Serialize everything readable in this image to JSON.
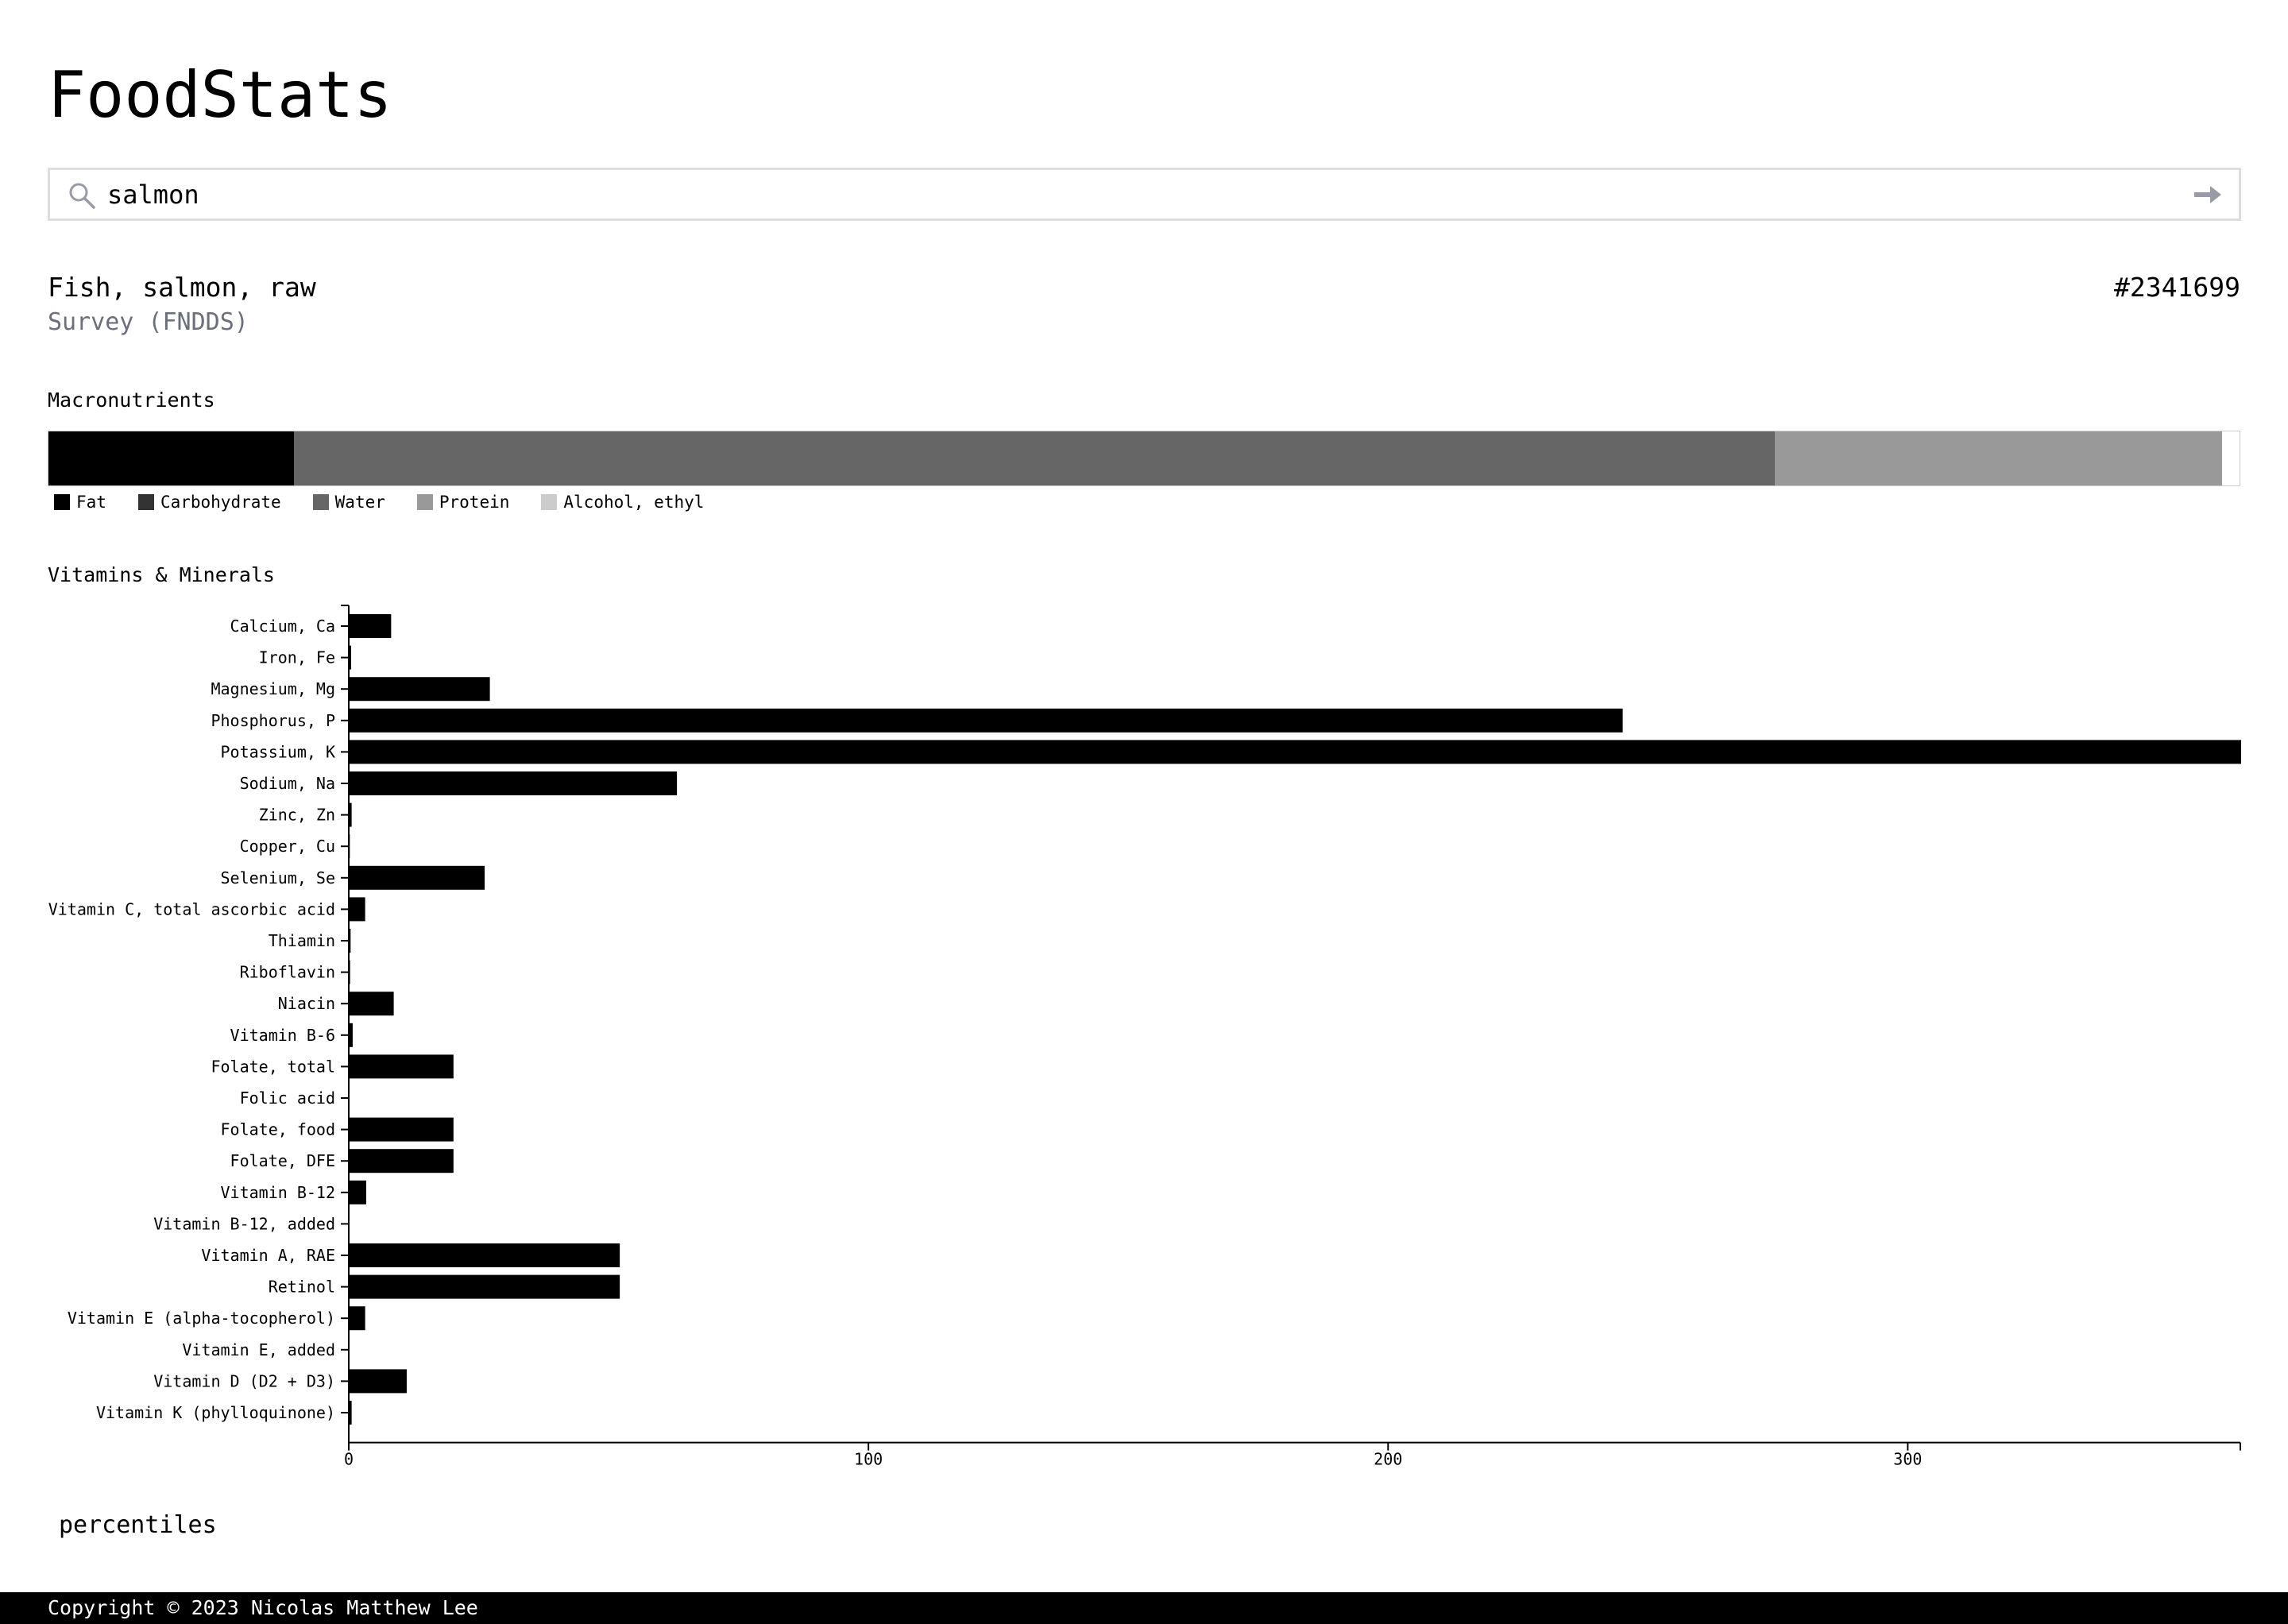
{
  "app": {
    "title": "FoodStats"
  },
  "search": {
    "value": "salmon",
    "icon": "search-icon",
    "submit_icon": "arrow-right-icon"
  },
  "food": {
    "name": "Fish, salmon, raw",
    "source": "Survey (FNDDS)",
    "id": "#2341699"
  },
  "macros": {
    "heading": "Macronutrients",
    "segments": [
      {
        "name": "Fat",
        "percent": 11.2,
        "color": "#000000"
      },
      {
        "name": "Carbohydrate",
        "percent": 0,
        "color": "#333333"
      },
      {
        "name": "Water",
        "percent": 67.6,
        "color": "#666666"
      },
      {
        "name": "Protein",
        "percent": 20.4,
        "color": "#999999"
      },
      {
        "name": "Alcohol, ethyl",
        "percent": 0,
        "color": "#cccccc"
      }
    ]
  },
  "vitamins": {
    "heading": "Vitamins & Minerals"
  },
  "chart_data": {
    "type": "bar",
    "orientation": "horizontal",
    "categories": [
      "Calcium, Ca",
      "Iron, Fe",
      "Magnesium, Mg",
      "Phosphorus, P",
      "Potassium, K",
      "Sodium, Na",
      "Zinc, Zn",
      "Copper, Cu",
      "Selenium, Se",
      "Vitamin C, total ascorbic acid",
      "Thiamin",
      "Riboflavin",
      "Niacin",
      "Vitamin B-6",
      "Folate, total",
      "Folic acid",
      "Folate, food",
      "Folate, DFE",
      "Vitamin B-12",
      "Vitamin B-12, added",
      "Vitamin A, RAE",
      "Retinol",
      "Vitamin E (alpha-tocopherol)",
      "Vitamin E, added",
      "Vitamin D (D2 + D3)",
      "Vitamin K (phylloquinone)"
    ],
    "values": [
      8,
      0.3,
      27,
      245,
      364,
      63,
      0.4,
      0.05,
      26,
      3,
      0.2,
      0.1,
      8.5,
      0.6,
      20,
      0,
      20,
      20,
      3.2,
      0,
      52,
      52,
      3,
      0,
      11,
      0.4
    ],
    "xlim": [
      0,
      364
    ],
    "xticks": [
      "0",
      "100",
      "200",
      "300"
    ],
    "xtick_values": [
      0,
      100,
      200,
      300
    ],
    "color": "#000000"
  },
  "percentiles": {
    "label": "percentiles"
  },
  "footer": {
    "text": "Copyright © 2023 Nicolas Matthew Lee"
  }
}
